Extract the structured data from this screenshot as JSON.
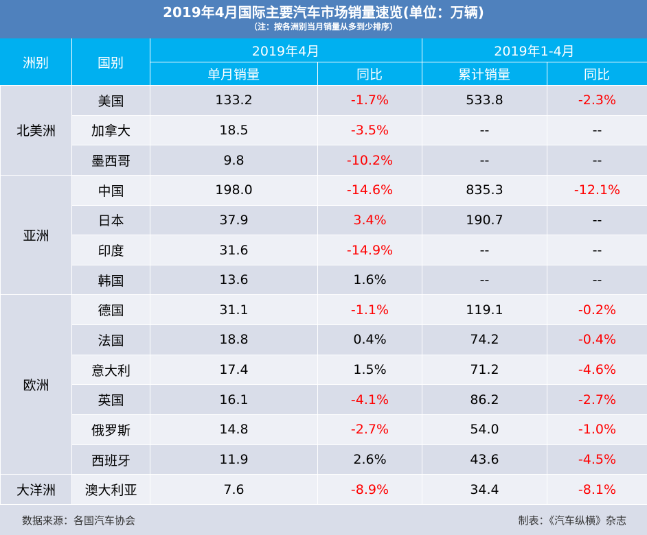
{
  "title": "2019年4月国际主要汽车市场销量速览(单位：万辆)",
  "subtitle": "（注：按各洲别当月销量从多到少排序）",
  "headers": {
    "continent": "洲别",
    "country": "国别",
    "group_month": "2019年4月",
    "group_ytd": "2019年1-4月",
    "monthly_sales": "单月销量",
    "yoy": "同比",
    "cumulative_sales": "累计销量",
    "yoy2": "同比"
  },
  "colors": {
    "title_bg": "#4f81bd",
    "header_bg": "#00b0f0",
    "row_alt": "#d9dde9",
    "row_plain": "#eef0f6",
    "negative": "#ff0000"
  },
  "chart_data": {
    "type": "table",
    "columns": [
      "洲别",
      "国别",
      "单月销量",
      "同比",
      "累计销量",
      "同比"
    ],
    "groups": [
      {
        "continent": "北美洲",
        "rows": [
          {
            "country": "美国",
            "monthly": "133.2",
            "monthly_yoy": "-1.7%",
            "cumulative": "533.8",
            "cumulative_yoy": "-2.3%"
          },
          {
            "country": "加拿大",
            "monthly": "18.5",
            "monthly_yoy": "-3.5%",
            "cumulative": "--",
            "cumulative_yoy": "--"
          },
          {
            "country": "墨西哥",
            "monthly": "9.8",
            "monthly_yoy": "-10.2%",
            "cumulative": "--",
            "cumulative_yoy": "--"
          }
        ]
      },
      {
        "continent": "亚洲",
        "rows": [
          {
            "country": "中国",
            "monthly": "198.0",
            "monthly_yoy": "-14.6%",
            "cumulative": "835.3",
            "cumulative_yoy": "-12.1%"
          },
          {
            "country": "日本",
            "monthly": "37.9",
            "monthly_yoy": "3.4%",
            "cumulative": "190.7",
            "cumulative_yoy": "--"
          },
          {
            "country": "印度",
            "monthly": "31.6",
            "monthly_yoy": "-14.9%",
            "cumulative": "--",
            "cumulative_yoy": "--"
          },
          {
            "country": "韩国",
            "monthly": "13.6",
            "monthly_yoy": "1.6%",
            "cumulative": "--",
            "cumulative_yoy": "--"
          }
        ]
      },
      {
        "continent": "欧洲",
        "rows": [
          {
            "country": "德国",
            "monthly": "31.1",
            "monthly_yoy": "-1.1%",
            "cumulative": "119.1",
            "cumulative_yoy": "-0.2%"
          },
          {
            "country": "法国",
            "monthly": "18.8",
            "monthly_yoy": "0.4%",
            "cumulative": "74.2",
            "cumulative_yoy": "-0.4%"
          },
          {
            "country": "意大利",
            "monthly": "17.4",
            "monthly_yoy": "1.5%",
            "cumulative": "71.2",
            "cumulative_yoy": "-4.6%"
          },
          {
            "country": "英国",
            "monthly": "16.1",
            "monthly_yoy": "-4.1%",
            "cumulative": "86.2",
            "cumulative_yoy": "-2.7%"
          },
          {
            "country": "俄罗斯",
            "monthly": "14.8",
            "monthly_yoy": "-2.7%",
            "cumulative": "54.0",
            "cumulative_yoy": "-1.0%"
          },
          {
            "country": "西班牙",
            "monthly": "11.9",
            "monthly_yoy": "2.6%",
            "cumulative": "43.6",
            "cumulative_yoy": "-4.5%"
          }
        ]
      },
      {
        "continent": "大洋洲",
        "rows": [
          {
            "country": "澳大利亚",
            "monthly": "7.6",
            "monthly_yoy": "-8.9%",
            "cumulative": "34.4",
            "cumulative_yoy": "-8.1%"
          }
        ]
      }
    ]
  },
  "footer": {
    "source": "数据来源：各国汽车协会",
    "made_by": "制表：《汽车纵横》杂志"
  }
}
